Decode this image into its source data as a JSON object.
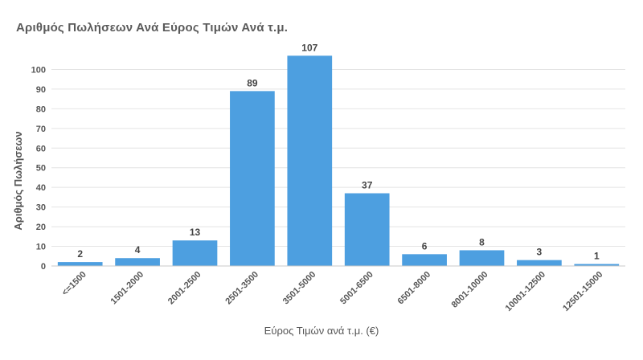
{
  "chart_data": {
    "type": "bar",
    "title": "Αριθμός Πωλήσεων Ανά Εύρος Τιμών Ανά τ.μ.",
    "xlabel": "Εύρος Τιμών ανά τ.μ. (€)",
    "ylabel": "Αριθμός Πωλήσεων",
    "categories": [
      "<=1500",
      "1501-2000",
      "2001-2500",
      "2501-3500",
      "3501-5000",
      "5001-6500",
      "6501-8000",
      "8001-10000",
      "10001-12500",
      "12501-15000"
    ],
    "values": [
      2,
      4,
      13,
      89,
      107,
      37,
      6,
      8,
      3,
      1
    ],
    "yticks": [
      0,
      10,
      20,
      30,
      40,
      50,
      60,
      70,
      80,
      90,
      100
    ],
    "ylim": [
      0,
      110
    ],
    "grid": true,
    "legend": "none",
    "bar_color": "#4d9fe0"
  }
}
